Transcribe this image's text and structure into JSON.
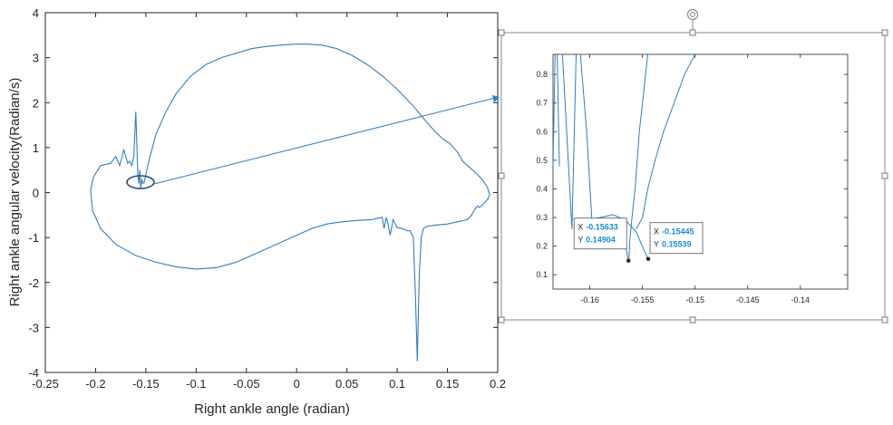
{
  "chart_data": [
    {
      "type": "line",
      "xlabel": "Right ankle angle (radian)",
      "ylabel": "Right ankle angular velocity(Radian/s)",
      "xlim": [
        -0.25,
        0.2
      ],
      "ylim": [
        -4,
        4
      ],
      "x_ticks": [
        "-0.25",
        "-0.2",
        "-0.15",
        "-0.1",
        "-0.05",
        "0",
        "0.05",
        "0.1",
        "0.15",
        "0.2"
      ],
      "y_ticks": [
        "-4",
        "-3",
        "-2",
        "-1",
        "0",
        "1",
        "2",
        "3",
        "4"
      ],
      "grid": false,
      "color": "#2f7fc1",
      "series": [
        {
          "x": [
            -0.152,
            -0.147,
            -0.14,
            -0.13,
            -0.12,
            -0.105,
            -0.09,
            -0.075,
            -0.06,
            -0.045,
            -0.03,
            -0.015,
            0.0,
            0.01,
            0.025,
            0.04,
            0.055,
            0.07,
            0.085,
            0.1,
            0.115,
            0.128,
            0.138,
            0.145,
            0.152,
            0.16,
            0.165,
            0.17,
            0.175,
            0.18,
            0.186,
            0.19,
            0.192,
            0.19,
            0.186,
            0.182,
            0.18,
            0.177,
            0.174,
            0.17,
            0.16,
            0.15,
            0.14,
            0.13,
            0.126,
            0.124,
            0.122,
            0.12,
            0.118,
            0.116,
            0.113,
            0.11,
            0.105,
            0.1,
            0.096,
            0.093,
            0.091,
            0.089,
            0.087,
            0.085,
            0.075,
            0.06,
            0.045,
            0.03,
            0.015,
            0.0,
            -0.02,
            -0.04,
            -0.06,
            -0.08,
            -0.1,
            -0.12,
            -0.14,
            -0.16,
            -0.18,
            -0.195,
            -0.203,
            -0.205,
            -0.202,
            -0.195,
            -0.185,
            -0.18,
            -0.176,
            -0.172,
            -0.168,
            -0.166,
            -0.164,
            -0.162,
            -0.16,
            -0.158,
            -0.157,
            -0.156,
            -0.155,
            -0.154,
            -0.153
          ],
          "y": [
            0.2,
            0.7,
            1.3,
            1.8,
            2.2,
            2.6,
            2.85,
            3.0,
            3.1,
            3.2,
            3.25,
            3.28,
            3.3,
            3.3,
            3.28,
            3.2,
            3.05,
            2.85,
            2.6,
            2.3,
            1.95,
            1.6,
            1.35,
            1.2,
            1.1,
            0.9,
            0.7,
            0.6,
            0.5,
            0.4,
            0.25,
            0.1,
            -0.05,
            -0.15,
            -0.25,
            -0.33,
            -0.3,
            -0.38,
            -0.5,
            -0.6,
            -0.65,
            -0.7,
            -0.72,
            -0.75,
            -0.8,
            -1.0,
            -1.8,
            -3.75,
            -2.2,
            -1.0,
            -0.85,
            -0.85,
            -0.8,
            -0.78,
            -0.6,
            -0.95,
            -0.7,
            -0.55,
            -0.8,
            -0.55,
            -0.6,
            -0.62,
            -0.65,
            -0.7,
            -0.8,
            -0.95,
            -1.15,
            -1.35,
            -1.55,
            -1.67,
            -1.7,
            -1.65,
            -1.55,
            -1.4,
            -1.15,
            -0.8,
            -0.4,
            0.05,
            0.35,
            0.6,
            0.65,
            0.8,
            0.6,
            0.95,
            0.65,
            0.7,
            0.6,
            0.8,
            1.8,
            0.4,
            0.2,
            0.5,
            0.1,
            0.3,
            0.2
          ]
        }
      ]
    },
    {
      "type": "line",
      "xlim": [
        -0.1635,
        -0.1355
      ],
      "ylim": [
        0.05,
        0.87
      ],
      "x_ticks": [
        "-0.16",
        "-0.155",
        "-0.15",
        "-0.145",
        "-0.14"
      ],
      "y_ticks": [
        "0.1",
        "0.2",
        "0.3",
        "0.4",
        "0.5",
        "0.6",
        "0.7",
        "0.8"
      ],
      "grid": false,
      "color": "#2f7fc1",
      "series": [
        {
          "x": [
            -0.1635,
            -0.1633,
            -0.1631,
            -0.1629
          ],
          "y": [
            0.48,
            0.87,
            0.87,
            0.48
          ]
        },
        {
          "x": [
            -0.1626,
            -0.1617,
            -0.1613,
            -0.1609,
            -0.1603,
            -0.1598,
            -0.1592,
            -0.1585,
            -0.158,
            -0.1575,
            -0.1571,
            -0.1567,
            -0.1565,
            -0.1564,
            -0.1563
          ],
          "y": [
            0.87,
            0.26,
            0.87,
            0.87,
            0.6,
            0.29,
            0.3,
            0.29,
            0.28,
            0.29,
            0.28,
            0.22,
            0.18,
            0.16,
            0.149
          ]
        },
        {
          "x": [
            -0.1563,
            -0.1562,
            -0.156,
            -0.1557,
            -0.1555,
            -0.1553,
            -0.155,
            -0.1547,
            -0.1545
          ],
          "y": [
            0.149,
            0.22,
            0.3,
            0.4,
            0.5,
            0.6,
            0.7,
            0.8,
            0.87
          ]
        },
        {
          "x": [
            -0.1601,
            -0.159,
            -0.1578,
            -0.1566,
            -0.1556,
            -0.1549,
            -0.15445
          ],
          "y": [
            0.26,
            0.3,
            0.31,
            0.29,
            0.25,
            0.19,
            0.155
          ]
        },
        {
          "x": [
            -0.1556,
            -0.155,
            -0.1545,
            -0.1538,
            -0.153,
            -0.152,
            -0.151,
            -0.15
          ],
          "y": [
            0.26,
            0.3,
            0.4,
            0.5,
            0.6,
            0.7,
            0.8,
            0.87
          ]
        }
      ],
      "datatips": [
        {
          "x_label": "X",
          "x_value": "-0.15633",
          "y_label": "Y",
          "y_value": "0.14904",
          "x": -0.15633,
          "y": 0.14904
        },
        {
          "x_label": "X",
          "x_value": "-0.15445",
          "y_label": "Y",
          "y_value": "0.15539",
          "x": -0.15445,
          "y": 0.15539
        }
      ]
    }
  ]
}
